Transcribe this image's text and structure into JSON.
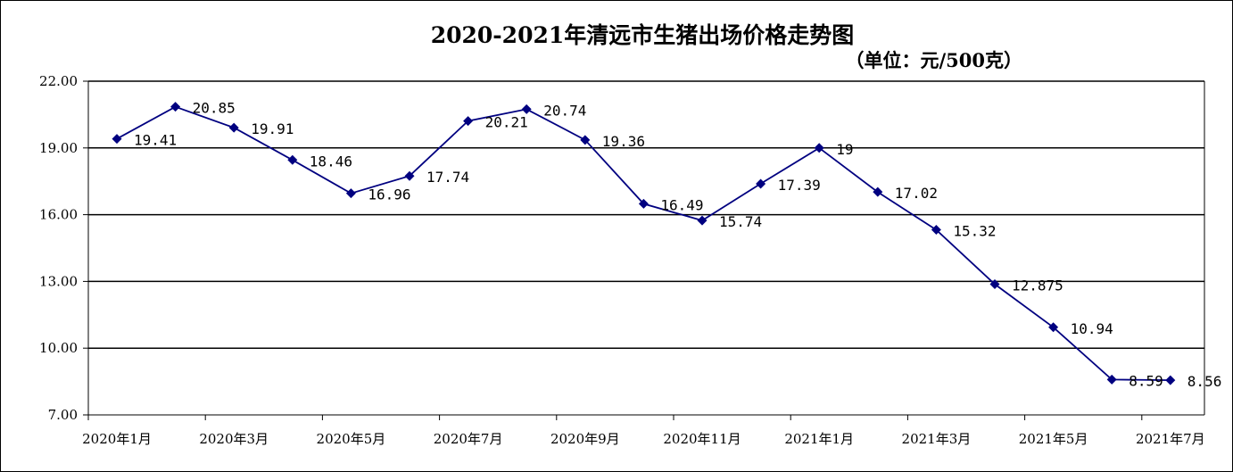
{
  "chart_data": {
    "type": "line",
    "title": "2020-2021年清远市生猪出场价格走势图",
    "subtitle": "（单位：元/500克）",
    "ylim": [
      7,
      22
    ],
    "yticks": [
      "7.00",
      "10.00",
      "13.00",
      "16.00",
      "19.00",
      "22.00"
    ],
    "grid": true,
    "x_tick_labels": [
      "2020年1月",
      "2020年3月",
      "2020年5月",
      "2020年7月",
      "2020年9月",
      "2020年11月",
      "2021年1月",
      "2021年3月",
      "2021年5月",
      "2021年7月"
    ],
    "series": [
      {
        "color": "#000080",
        "values": [
          19.41,
          20.85,
          19.91,
          18.46,
          16.96,
          17.74,
          20.21,
          20.74,
          19.36,
          16.49,
          15.74,
          17.39,
          19,
          17.02,
          15.32,
          12.875,
          10.94,
          8.59,
          8.56
        ],
        "labels": [
          "19.41",
          "20.85",
          "19.91",
          "18.46",
          "16.96",
          "17.74",
          "20.21",
          "20.74",
          "19.36",
          "16.49",
          "15.74",
          "17.39",
          "19",
          "17.02",
          "15.32",
          "12.875",
          "10.94",
          "8.59",
          "8.56"
        ]
      }
    ]
  }
}
